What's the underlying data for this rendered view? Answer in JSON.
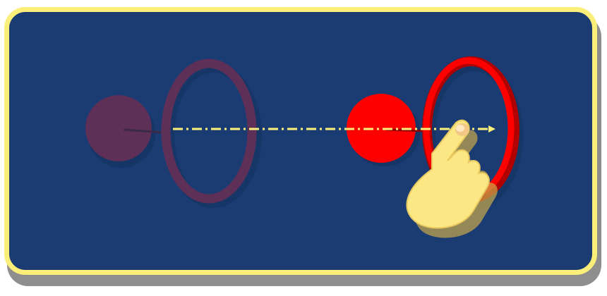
{
  "panel": {
    "background_color": "#1a3c73",
    "border_color": "#fbef7a",
    "shadow_color": "#8e8e8e"
  },
  "ghost_state": {
    "ball_color": "#5e3058",
    "ring_color": "#5e3058",
    "description_icon": "ball-and-ring-faded"
  },
  "active_state": {
    "ball_color": "#ff0000",
    "ring_color": "#ff0000",
    "ring_shade": "#b00000",
    "description_icon": "ball-and-ring-active"
  },
  "gesture": {
    "direction": "right",
    "arrow_color": "#fff27a",
    "hand_color": "#fbe783",
    "hand_icon": "pointing-hand-icon"
  }
}
